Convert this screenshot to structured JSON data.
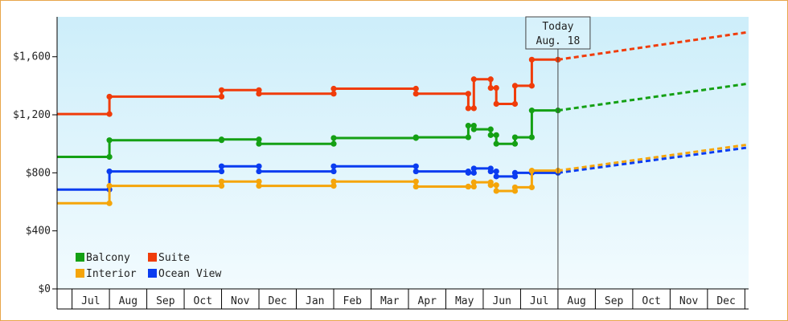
{
  "chart_data": {
    "type": "line",
    "title": "",
    "xlabel": "",
    "ylabel": "",
    "ylim": [
      0,
      1875
    ],
    "y_ticks": [
      {
        "value": 0,
        "label": "$0"
      },
      {
        "value": 400,
        "label": "$400"
      },
      {
        "value": 800,
        "label": "$800"
      },
      {
        "value": 1200,
        "label": "$1,200"
      },
      {
        "value": 1600,
        "label": "$1,600"
      }
    ],
    "xlim": [
      -0.4,
      18.1
    ],
    "months": [
      "Jul",
      "Aug",
      "Sep",
      "Oct",
      "Nov",
      "Dec",
      "Jan",
      "Feb",
      "Mar",
      "Apr",
      "May",
      "Jun",
      "Jul",
      "Aug",
      "Sep",
      "Oct",
      "Nov",
      "Dec"
    ],
    "x_note": "x values are month index: 0 = Jul (start of month 0), 1 = Aug, ...",
    "today": {
      "line1": "Today",
      "line2": "Aug. 18",
      "x": 13.0
    },
    "grid": false,
    "legend_position": "bottom-left",
    "colors": {
      "background_top": "#cdeefa",
      "background_bottom": "#f2fbfe",
      "frame_border": "#e8a54a",
      "axis": "#000000"
    },
    "series": [
      {
        "name": "Suite",
        "color": "#f03c0a",
        "points": [
          [
            -0.4,
            1205
          ],
          [
            1.0,
            1205
          ],
          [
            1.0,
            1325
          ],
          [
            4.0,
            1325
          ],
          [
            4.0,
            1370
          ],
          [
            5.0,
            1370
          ],
          [
            5.0,
            1345
          ],
          [
            7.0,
            1345
          ],
          [
            7.0,
            1380
          ],
          [
            9.2,
            1380
          ],
          [
            9.2,
            1345
          ],
          [
            10.6,
            1345
          ],
          [
            10.6,
            1245
          ],
          [
            10.75,
            1245
          ],
          [
            10.75,
            1445
          ],
          [
            11.2,
            1445
          ],
          [
            11.2,
            1385
          ],
          [
            11.35,
            1385
          ],
          [
            11.35,
            1275
          ],
          [
            11.85,
            1275
          ],
          [
            11.85,
            1400
          ],
          [
            12.3,
            1400
          ],
          [
            12.3,
            1580
          ],
          [
            13.0,
            1580
          ]
        ],
        "projection": [
          [
            13.0,
            1580
          ],
          [
            18.1,
            1770
          ]
        ]
      },
      {
        "name": "Balcony",
        "color": "#14a014",
        "points": [
          [
            -0.4,
            910
          ],
          [
            1.0,
            910
          ],
          [
            1.0,
            1025
          ],
          [
            4.0,
            1025
          ],
          [
            4.0,
            1030
          ],
          [
            5.0,
            1030
          ],
          [
            5.0,
            1000
          ],
          [
            7.0,
            1000
          ],
          [
            7.0,
            1040
          ],
          [
            9.2,
            1040
          ],
          [
            9.2,
            1045
          ],
          [
            10.6,
            1045
          ],
          [
            10.6,
            1125
          ],
          [
            10.75,
            1125
          ],
          [
            10.75,
            1100
          ],
          [
            11.2,
            1100
          ],
          [
            11.2,
            1060
          ],
          [
            11.35,
            1060
          ],
          [
            11.35,
            1000
          ],
          [
            11.85,
            1000
          ],
          [
            11.85,
            1045
          ],
          [
            12.3,
            1045
          ],
          [
            12.3,
            1230
          ],
          [
            13.0,
            1230
          ]
        ],
        "projection": [
          [
            13.0,
            1230
          ],
          [
            18.1,
            1415
          ]
        ]
      },
      {
        "name": "Ocean View",
        "color": "#0a3cf0",
        "points": [
          [
            -0.4,
            685
          ],
          [
            1.0,
            685
          ],
          [
            1.0,
            810
          ],
          [
            4.0,
            810
          ],
          [
            4.0,
            845
          ],
          [
            5.0,
            845
          ],
          [
            5.0,
            810
          ],
          [
            7.0,
            810
          ],
          [
            7.0,
            845
          ],
          [
            9.2,
            845
          ],
          [
            9.2,
            810
          ],
          [
            10.6,
            810
          ],
          [
            10.6,
            800
          ],
          [
            10.75,
            800
          ],
          [
            10.75,
            830
          ],
          [
            11.2,
            830
          ],
          [
            11.2,
            810
          ],
          [
            11.35,
            810
          ],
          [
            11.35,
            775
          ],
          [
            11.85,
            775
          ],
          [
            11.85,
            800
          ],
          [
            12.3,
            800
          ],
          [
            12.3,
            800
          ],
          [
            13.0,
            800
          ]
        ],
        "projection": [
          [
            13.0,
            800
          ],
          [
            18.1,
            975
          ]
        ]
      },
      {
        "name": "Interior",
        "color": "#f5a50a",
        "points": [
          [
            -0.4,
            590
          ],
          [
            1.0,
            590
          ],
          [
            1.0,
            710
          ],
          [
            4.0,
            710
          ],
          [
            4.0,
            740
          ],
          [
            5.0,
            740
          ],
          [
            5.0,
            710
          ],
          [
            7.0,
            710
          ],
          [
            7.0,
            740
          ],
          [
            9.2,
            740
          ],
          [
            9.2,
            705
          ],
          [
            10.6,
            705
          ],
          [
            10.6,
            705
          ],
          [
            10.75,
            705
          ],
          [
            10.75,
            735
          ],
          [
            11.2,
            735
          ],
          [
            11.2,
            715
          ],
          [
            11.35,
            715
          ],
          [
            11.35,
            675
          ],
          [
            11.85,
            675
          ],
          [
            11.85,
            700
          ],
          [
            12.3,
            700
          ],
          [
            12.3,
            815
          ],
          [
            13.0,
            815
          ]
        ],
        "projection": [
          [
            13.0,
            815
          ],
          [
            18.1,
            995
          ]
        ]
      }
    ],
    "legend": [
      {
        "name": "Balcony",
        "color": "#14a014"
      },
      {
        "name": "Suite",
        "color": "#f03c0a"
      },
      {
        "name": "Interior",
        "color": "#f5a50a"
      },
      {
        "name": "Ocean View",
        "color": "#0a3cf0"
      }
    ]
  }
}
